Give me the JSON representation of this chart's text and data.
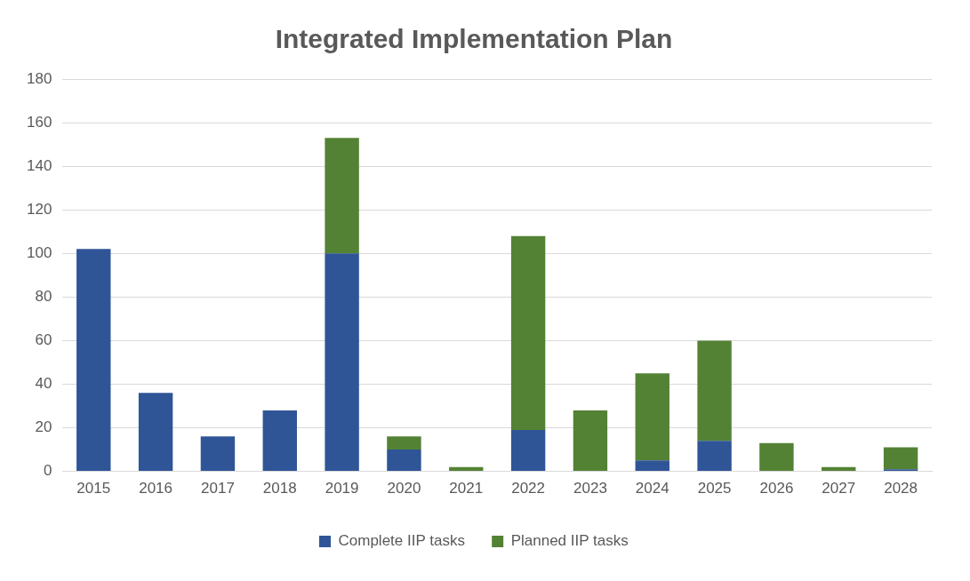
{
  "chart_data": {
    "type": "bar",
    "title": "Integrated Implementation Plan",
    "stacked": true,
    "categories": [
      "2015",
      "2016",
      "2017",
      "2018",
      "2019",
      "2020",
      "2021",
      "2022",
      "2023",
      "2024",
      "2025",
      "2026",
      "2027",
      "2028"
    ],
    "series": [
      {
        "name": "Complete IIP tasks",
        "color": "#2f5597",
        "values": [
          102,
          36,
          16,
          28,
          100,
          10,
          0,
          19,
          0,
          5,
          14,
          0,
          0,
          1
        ]
      },
      {
        "name": "Planned IIP tasks",
        "color": "#548235",
        "values": [
          0,
          0,
          0,
          0,
          53,
          6,
          2,
          89,
          28,
          40,
          46,
          13,
          2,
          10
        ]
      }
    ],
    "ylim": [
      0,
      180
    ],
    "yticks": [
      0,
      20,
      40,
      60,
      80,
      100,
      120,
      140,
      160,
      180
    ],
    "grid": "y",
    "legend": "bottom"
  }
}
